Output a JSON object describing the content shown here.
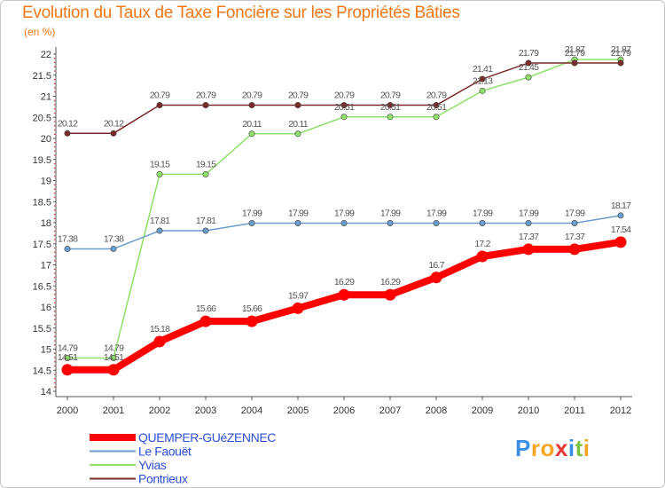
{
  "title": "Evolution du Taux de Taxe Foncière sur les Propriétés Bâties",
  "subtitle": "(en %)",
  "logo": {
    "text": "Proxiti",
    "letters": [
      {
        "ch": "P",
        "color": "#3a8ee8"
      },
      {
        "ch": "r",
        "color": "#f5a623"
      },
      {
        "ch": "o",
        "color": "#f5a623"
      },
      {
        "ch": "x",
        "color": "#e53935"
      },
      {
        "ch": "i",
        "color": "#3a8ee8"
      },
      {
        "ch": "t",
        "color": "#7cc242"
      },
      {
        "ch": "i",
        "color": "#f5a623"
      }
    ]
  },
  "chart_data": {
    "type": "line",
    "title": "Evolution du Taux de Taxe Foncière sur les Propriétés Bâties",
    "ylabel": "(en %)",
    "xlabel": "",
    "x": [
      "2000",
      "2001",
      "2002",
      "2003",
      "2004",
      "2005",
      "2006",
      "2007",
      "2008",
      "2009",
      "2010",
      "2011",
      "2012"
    ],
    "ylim": [
      14,
      22
    ],
    "yticks": [
      14,
      14.5,
      15,
      15.5,
      16,
      16.5,
      17,
      17.5,
      18,
      18.5,
      19,
      19.5,
      20,
      20.5,
      21,
      21.5,
      22
    ],
    "ytick_labels": [
      "14",
      "14.5",
      "15",
      "15.5",
      "16",
      "16.5",
      "17",
      "17.5",
      "18",
      "18.5",
      "19",
      "19.5",
      "20",
      "20.5",
      "21",
      "21.5",
      "22"
    ],
    "grid": false,
    "legend_position": "bottom-left",
    "series": [
      {
        "name": "QUEMPER-GUéZENNEC",
        "color": "#ff0000",
        "values": [
          14.51,
          14.51,
          15.18,
          15.66,
          15.66,
          15.97,
          16.29,
          16.29,
          16.7,
          17.2,
          17.37,
          17.37,
          17.54
        ],
        "labels": [
          "14.51",
          "14.51",
          "15.18",
          "15.66",
          "15.66",
          "15.97",
          "16.29",
          "16.29",
          "16.7",
          "17.2",
          "17.37",
          "17.37",
          "17.54"
        ]
      },
      {
        "name": "Le Faouët",
        "color": "#6a9ccd",
        "values": [
          17.38,
          17.38,
          17.81,
          17.81,
          17.99,
          17.99,
          17.99,
          17.99,
          17.99,
          17.99,
          17.99,
          17.99,
          18.17
        ],
        "labels": [
          "17.38",
          "17.38",
          "17.81",
          "17.81",
          "17.99",
          "17.99",
          "17.99",
          "17.99",
          "17.99",
          "17.99",
          "17.99",
          "17.99",
          "18.17"
        ]
      },
      {
        "name": "Yvias",
        "color": "#8fe06a",
        "values": [
          14.79,
          14.79,
          19.15,
          19.15,
          20.11,
          20.11,
          20.51,
          20.51,
          20.51,
          21.13,
          21.45,
          21.87,
          21.87
        ],
        "labels": [
          "14.79",
          "14.79",
          "19.15",
          "19.15",
          "20.11",
          "20.11",
          "20.51",
          "20.51",
          "20.51",
          "21.13",
          "21.45",
          "21.87",
          "21.87"
        ]
      },
      {
        "name": "Pontrieux",
        "color": "#7a2a2a",
        "values": [
          20.12,
          20.12,
          20.79,
          20.79,
          20.79,
          20.79,
          20.79,
          20.79,
          20.79,
          21.41,
          21.79,
          21.79,
          21.79
        ],
        "labels": [
          "20.12",
          "20.12",
          "20.79",
          "20.79",
          "20.79",
          "20.79",
          "20.79",
          "20.79",
          "20.79",
          "21.41",
          "21.79",
          "21.79",
          "21.79"
        ]
      }
    ]
  }
}
